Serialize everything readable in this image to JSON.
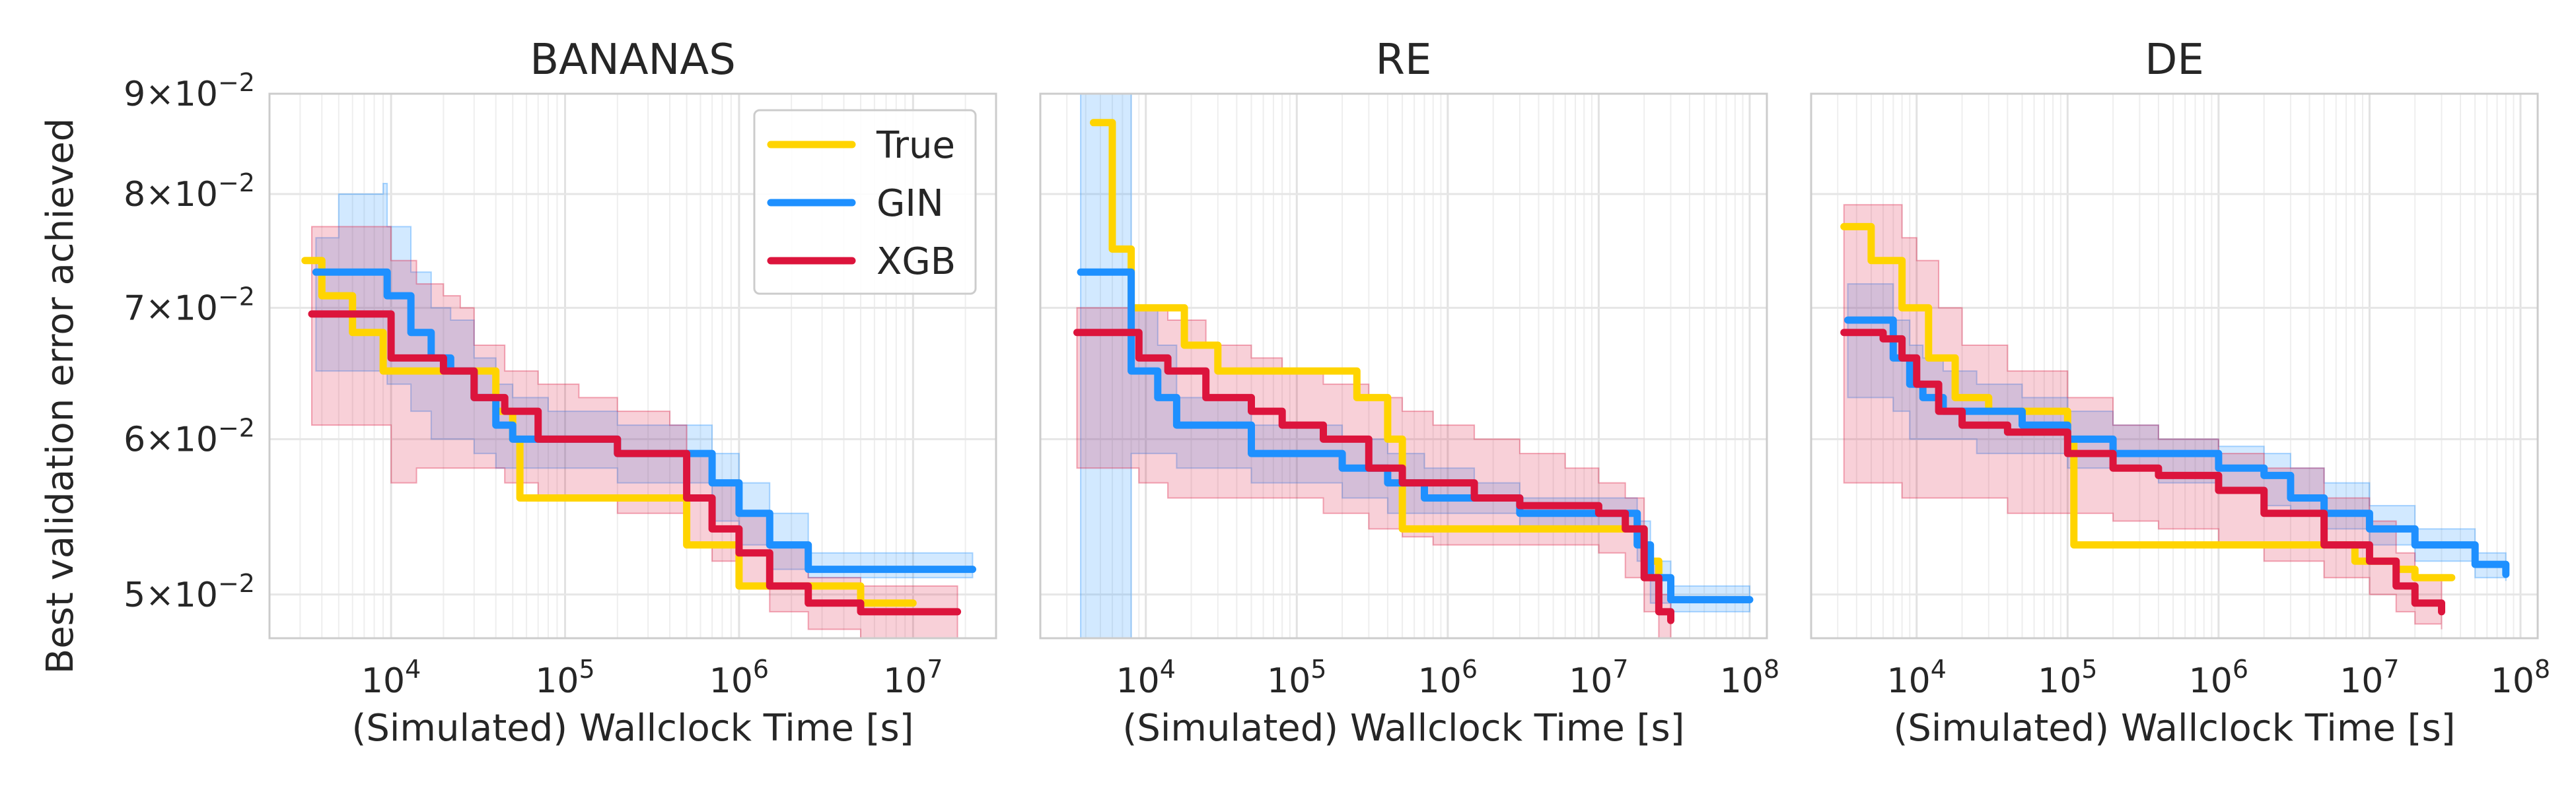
{
  "figure": {
    "ylabel": "Best validation error achieved"
  },
  "legend": {
    "placement": "top-right of first panel",
    "entries": [
      {
        "label": "True",
        "color": "#FFD400"
      },
      {
        "label": "GIN",
        "color": "#1E90FF"
      },
      {
        "label": "XGB",
        "color": "#DC143C"
      }
    ]
  },
  "chart_data": [
    {
      "type": "line",
      "title": "BANANAS",
      "xlabel": "(Simulated) Wallclock Time [s]",
      "ylabel": "Best validation error achieved",
      "xscale": "log",
      "yscale": "log",
      "xlim": [
        2000,
        30000000
      ],
      "ylim": [
        0.0475,
        0.09
      ],
      "xticks": [
        {
          "value": 10000,
          "base": "10",
          "exp": "4"
        },
        {
          "value": 100000,
          "base": "10",
          "exp": "5"
        },
        {
          "value": 1000000,
          "base": "10",
          "exp": "6"
        },
        {
          "value": 10000000,
          "base": "10",
          "exp": "7"
        }
      ],
      "yticks": [
        {
          "value": 0.05,
          "mant": "5",
          "base": "10",
          "exp": "−2"
        },
        {
          "value": 0.06,
          "mant": "6",
          "base": "10",
          "exp": "−2"
        },
        {
          "value": 0.07,
          "mant": "7",
          "base": "10",
          "exp": "−2"
        },
        {
          "value": 0.08,
          "mant": "8",
          "base": "10",
          "exp": "−2"
        },
        {
          "value": 0.09,
          "mant": "9",
          "base": "10",
          "exp": "−2"
        }
      ],
      "grid": true,
      "series": [
        {
          "name": "True",
          "color": "#FFD400",
          "x": [
            3200,
            4000,
            6000,
            9000,
            20000,
            30000,
            40000,
            50000,
            55000,
            100000,
            200000,
            480000,
            500000,
            600000,
            1000000,
            2000000,
            5000000,
            10000000
          ],
          "y": [
            0.074,
            0.071,
            0.068,
            0.065,
            0.065,
            0.065,
            0.062,
            0.06,
            0.056,
            0.056,
            0.056,
            0.056,
            0.053,
            0.053,
            0.0505,
            0.0505,
            0.0495,
            0.0495
          ],
          "band": null
        },
        {
          "name": "GIN",
          "color": "#1E90FF",
          "x": [
            3700,
            5000,
            9000,
            9500,
            13000,
            17000,
            22000,
            30000,
            40000,
            50000,
            80000,
            200000,
            500000,
            700000,
            1000000,
            1500000,
            2500000,
            5000000,
            10000000,
            22000000
          ],
          "y": [
            0.073,
            0.073,
            0.073,
            0.071,
            0.068,
            0.066,
            0.065,
            0.063,
            0.061,
            0.06,
            0.06,
            0.059,
            0.059,
            0.057,
            0.055,
            0.053,
            0.0515,
            0.0515,
            0.0515,
            0.0515
          ],
          "band": {
            "lower": [
              0.065,
              0.065,
              0.065,
              0.064,
              0.062,
              0.06,
              0.06,
              0.059,
              0.058,
              0.058,
              0.058,
              0.057,
              0.057,
              0.0545,
              0.053,
              0.0515,
              0.051,
              0.051,
              0.051,
              0.051
            ],
            "upper": [
              0.076,
              0.08,
              0.081,
              0.077,
              0.073,
              0.07,
              0.069,
              0.066,
              0.064,
              0.063,
              0.062,
              0.061,
              0.061,
              0.059,
              0.057,
              0.055,
              0.0525,
              0.0525,
              0.0525,
              0.0525
            ]
          }
        },
        {
          "name": "XGB",
          "color": "#DC143C",
          "x": [
            3500,
            6000,
            10000,
            14000,
            20000,
            25000,
            30000,
            45000,
            70000,
            120000,
            200000,
            400000,
            500000,
            700000,
            1000000,
            1500000,
            2500000,
            5000000,
            18000000
          ],
          "y": [
            0.0695,
            0.0695,
            0.066,
            0.066,
            0.065,
            0.065,
            0.063,
            0.062,
            0.06,
            0.06,
            0.059,
            0.059,
            0.056,
            0.054,
            0.0525,
            0.0505,
            0.0495,
            0.049,
            0.049
          ],
          "band": {
            "lower": [
              0.061,
              0.061,
              0.057,
              0.058,
              0.058,
              0.058,
              0.058,
              0.057,
              0.056,
              0.056,
              0.055,
              0.055,
              0.053,
              0.052,
              0.0505,
              0.049,
              0.048,
              0.0475,
              0.0475
            ],
            "upper": [
              0.077,
              0.077,
              0.074,
              0.072,
              0.071,
              0.07,
              0.067,
              0.065,
              0.064,
              0.063,
              0.062,
              0.061,
              0.059,
              0.057,
              0.055,
              0.053,
              0.051,
              0.0505,
              0.0505
            ]
          }
        }
      ]
    },
    {
      "type": "line",
      "title": "RE",
      "xlabel": "(Simulated) Wallclock Time [s]",
      "ylabel": "",
      "xscale": "log",
      "yscale": "log",
      "xlim": [
        2000,
        130000000
      ],
      "ylim": [
        0.0475,
        0.09
      ],
      "xticks": [
        {
          "value": 10000,
          "base": "10",
          "exp": "4"
        },
        {
          "value": 100000,
          "base": "10",
          "exp": "5"
        },
        {
          "value": 1000000,
          "base": "10",
          "exp": "6"
        },
        {
          "value": 10000000,
          "base": "10",
          "exp": "7"
        },
        {
          "value": 100000000,
          "base": "10",
          "exp": "8"
        }
      ],
      "yticks": [],
      "grid": true,
      "series": [
        {
          "name": "True",
          "color": "#FFD400",
          "x": [
            4500,
            6000,
            8000,
            13000,
            18000,
            30000,
            50000,
            150000,
            250000,
            400000,
            500000,
            1000000,
            5000000,
            15000000,
            20000000,
            25000000
          ],
          "y": [
            0.087,
            0.075,
            0.07,
            0.07,
            0.067,
            0.065,
            0.065,
            0.065,
            0.063,
            0.06,
            0.054,
            0.054,
            0.054,
            0.054,
            0.052,
            0.051
          ],
          "band": null
        },
        {
          "name": "GIN",
          "color": "#1E90FF",
          "x": [
            3700,
            5000,
            8000,
            12000,
            16000,
            25000,
            50000,
            100000,
            200000,
            400000,
            700000,
            1500000,
            3000000,
            8000000,
            14000000,
            18000000,
            22000000,
            30000000,
            100000000
          ],
          "y": [
            0.073,
            0.073,
            0.065,
            0.063,
            0.061,
            0.061,
            0.059,
            0.059,
            0.058,
            0.057,
            0.056,
            0.056,
            0.055,
            0.055,
            0.055,
            0.053,
            0.051,
            0.0497,
            0.0497
          ],
          "band": {
            "lower": [
              0.0475,
              0.0475,
              0.059,
              0.059,
              0.058,
              0.058,
              0.057,
              0.057,
              0.056,
              0.055,
              0.055,
              0.055,
              0.054,
              0.054,
              0.054,
              0.052,
              0.0495,
              0.049,
              0.049
            ],
            "upper": [
              0.09,
              0.09,
              0.07,
              0.067,
              0.063,
              0.063,
              0.061,
              0.061,
              0.06,
              0.059,
              0.058,
              0.057,
              0.056,
              0.056,
              0.056,
              0.0545,
              0.052,
              0.0505,
              0.0505
            ]
          }
        },
        {
          "name": "XGB",
          "color": "#DC143C",
          "x": [
            3500,
            6000,
            9000,
            14000,
            25000,
            50000,
            80000,
            150000,
            300000,
            500000,
            800000,
            1500000,
            3000000,
            6000000,
            10000000,
            15000000,
            20000000,
            25000000,
            30000000
          ],
          "y": [
            0.068,
            0.068,
            0.066,
            0.065,
            0.063,
            0.062,
            0.061,
            0.06,
            0.058,
            0.057,
            0.057,
            0.056,
            0.0555,
            0.0555,
            0.055,
            0.054,
            0.051,
            0.049,
            0.0485
          ],
          "band": {
            "lower": [
              0.058,
              0.058,
              0.057,
              0.056,
              0.056,
              0.056,
              0.056,
              0.055,
              0.054,
              0.0535,
              0.053,
              0.053,
              0.053,
              0.053,
              0.0525,
              0.051,
              0.049,
              0.0475,
              0.0475
            ],
            "upper": [
              0.07,
              0.07,
              0.07,
              0.069,
              0.067,
              0.066,
              0.065,
              0.064,
              0.063,
              0.062,
              0.061,
              0.06,
              0.059,
              0.058,
              0.057,
              0.056,
              0.052,
              0.05,
              0.05
            ]
          }
        }
      ]
    },
    {
      "type": "line",
      "title": "DE",
      "xlabel": "(Simulated) Wallclock Time [s]",
      "ylabel": "",
      "xscale": "log",
      "yscale": "log",
      "xlim": [
        2000,
        130000000
      ],
      "ylim": [
        0.0475,
        0.09
      ],
      "xticks": [
        {
          "value": 10000,
          "base": "10",
          "exp": "4"
        },
        {
          "value": 100000,
          "base": "10",
          "exp": "5"
        },
        {
          "value": 1000000,
          "base": "10",
          "exp": "6"
        },
        {
          "value": 10000000,
          "base": "10",
          "exp": "7"
        },
        {
          "value": 100000000,
          "base": "10",
          "exp": "8"
        }
      ],
      "yticks": [],
      "grid": true,
      "series": [
        {
          "name": "True",
          "color": "#FFD400",
          "x": [
            3300,
            5000,
            8000,
            12000,
            18000,
            30000,
            50000,
            100000,
            110000,
            500000,
            2000000,
            8000000,
            15000000,
            20000000,
            35000000
          ],
          "y": [
            0.077,
            0.074,
            0.07,
            0.066,
            0.063,
            0.062,
            0.062,
            0.06,
            0.053,
            0.053,
            0.053,
            0.052,
            0.0515,
            0.051,
            0.051
          ],
          "band": null
        },
        {
          "name": "GIN",
          "color": "#1E90FF",
          "x": [
            3500,
            6000,
            7000,
            9000,
            11000,
            15000,
            25000,
            50000,
            100000,
            200000,
            400000,
            1000000,
            2000000,
            3000000,
            5000000,
            10000000,
            20000000,
            50000000,
            80000000
          ],
          "y": [
            0.069,
            0.069,
            0.066,
            0.064,
            0.063,
            0.062,
            0.062,
            0.061,
            0.06,
            0.059,
            0.059,
            0.058,
            0.0575,
            0.056,
            0.055,
            0.054,
            0.053,
            0.0518,
            0.0512
          ],
          "band": {
            "lower": [
              0.063,
              0.063,
              0.062,
              0.06,
              0.06,
              0.06,
              0.059,
              0.059,
              0.058,
              0.058,
              0.057,
              0.0565,
              0.0555,
              0.055,
              0.054,
              0.053,
              0.052,
              0.051,
              0.0508
            ],
            "upper": [
              0.072,
              0.072,
              0.069,
              0.067,
              0.066,
              0.065,
              0.064,
              0.063,
              0.062,
              0.061,
              0.06,
              0.0595,
              0.059,
              0.058,
              0.057,
              0.0555,
              0.054,
              0.0525,
              0.0518
            ]
          }
        },
        {
          "name": "XGB",
          "color": "#DC143C",
          "x": [
            3300,
            6000,
            8000,
            10000,
            14000,
            20000,
            40000,
            100000,
            200000,
            400000,
            1000000,
            2000000,
            5000000,
            10000000,
            15000000,
            20000000,
            30000000
          ],
          "y": [
            0.068,
            0.0675,
            0.066,
            0.064,
            0.062,
            0.061,
            0.0605,
            0.059,
            0.058,
            0.0575,
            0.0565,
            0.055,
            0.053,
            0.052,
            0.0505,
            0.0495,
            0.049
          ],
          "band": {
            "lower": [
              0.057,
              0.057,
              0.056,
              0.056,
              0.056,
              0.056,
              0.055,
              0.055,
              0.0545,
              0.054,
              0.053,
              0.052,
              0.051,
              0.05,
              0.049,
              0.0483,
              0.048
            ],
            "upper": [
              0.079,
              0.079,
              0.076,
              0.074,
              0.07,
              0.067,
              0.065,
              0.063,
              0.061,
              0.06,
              0.059,
              0.058,
              0.056,
              0.0545,
              0.0525,
              0.051,
              0.05
            ]
          }
        }
      ]
    }
  ]
}
